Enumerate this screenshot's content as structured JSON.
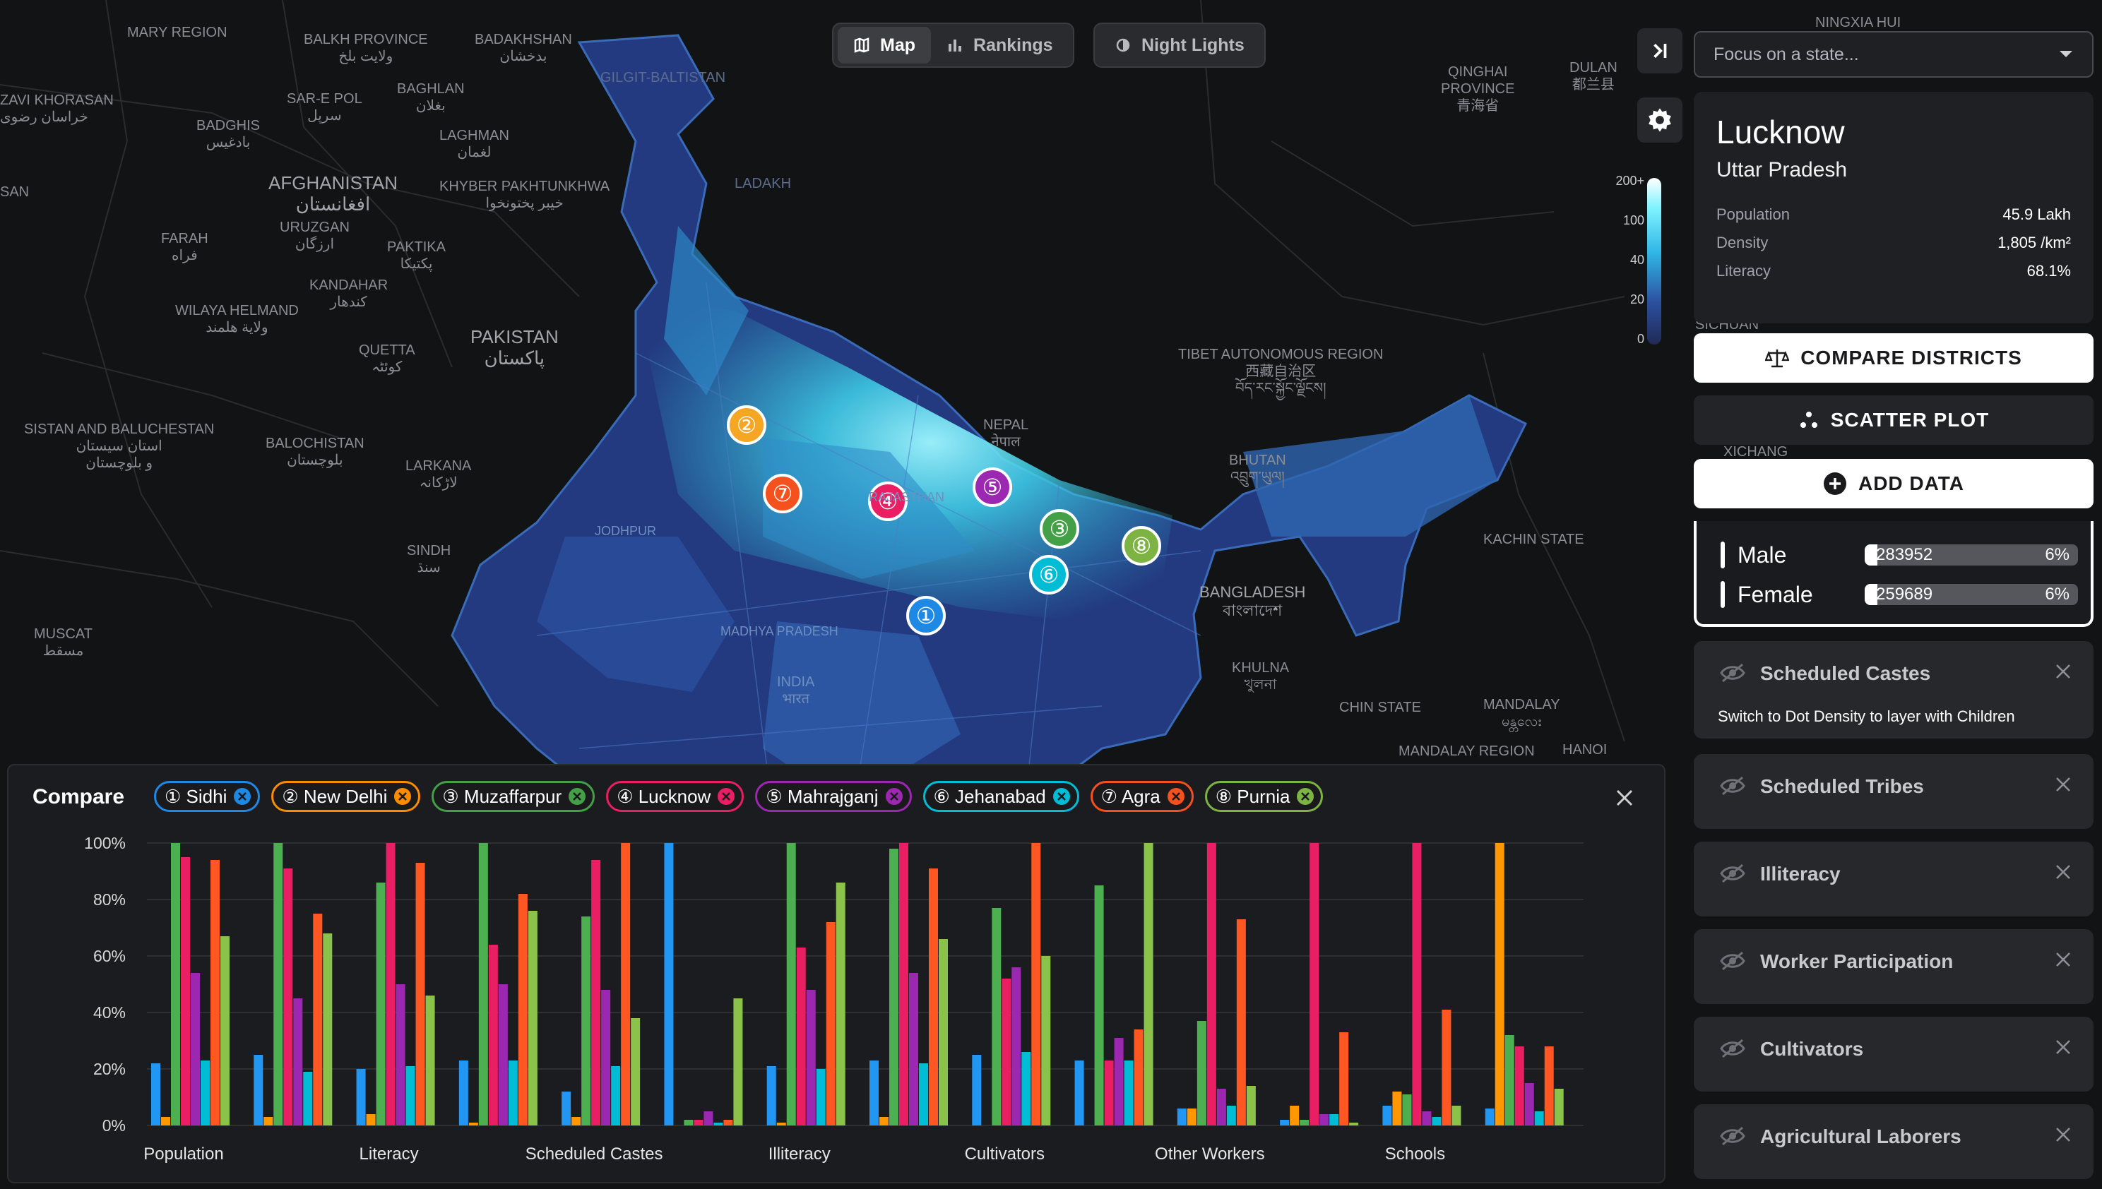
{
  "toolbar": {
    "tabs": [
      {
        "label": "Map",
        "icon": "map-icon",
        "active": true
      },
      {
        "label": "Rankings",
        "icon": "bar-chart-icon",
        "active": false
      }
    ],
    "night_lights_label": "Night Lights"
  },
  "map": {
    "labels": {
      "mary_region": "MARY REGION",
      "balkh": "BALKH PROVINCE\nولایت بلخ",
      "badakhshan": "BADAKHSHAN\nبدخشان",
      "zavi": "ZAVI KHORASAN\nخراسان رضوی",
      "sarepol": "SAR-E POL\nسرپل",
      "baghlan": "BAGHLAN\nبغلان",
      "badghis": "BADGHIS\nبادغیس",
      "laghman": "LAGHMAN\nلغمان",
      "san": "SAN",
      "afghanistan": "AFGHANISTAN\nافغانستان",
      "kpk": "KHYBER PAKHTUNKHWA\nخیبر پختونخوا",
      "uruzgan": "URUZGAN\nارزگان",
      "farah": "FARAH\nفراه",
      "paktika": "PAKTIKA\nپکتیکا",
      "kandahar": "KANDAHAR\nکندهار",
      "helmand": "WILAYA HELMAND\nولاية هلمند",
      "pakistan": "PAKISTAN\nپاکستان",
      "quetta": "QUETTA\nکوئٹہ",
      "sistan": "SISTAN AND BALUCHESTAN\nاستان سیستان\nو بلوچستان",
      "balochistan": "BALOCHISTAN\nبلوچستان",
      "larkana": "LARKANA\nلاڑکانہ",
      "sindh": "SINDH\nسنڌ",
      "muscat": "MUSCAT\nمسقط",
      "gilgit": "GILGIT-BALTISTAN",
      "ladakh": "LADAKH",
      "nepal": "NEPAL\nनेपाल",
      "bhutan": "BHUTAN\nའབྲུག་ཡུལ།",
      "bangladesh": "BANGLADESH\nবাংলাদেশ",
      "khulna": "KHULNA\nখুলনা",
      "tibet": "TIBET AUTONOMOUS REGION\n西藏自治区\nབོད་རང་སྐྱོང་ལྗོངས།",
      "qinghai": "QINGHAI\nPROVINCE\n青海省",
      "dulan": "DULAN\n都兰县",
      "ningxia": "NINGXIA HUI",
      "kachin": "KACHIN STATE",
      "mandalay": "MANDALAY\nမန္တလေး",
      "mandalay_region": "MANDALAY REGION",
      "chin": "CHIN STATE",
      "india": "INDIA\nभारत",
      "madhya": "MADHYA PRADESH",
      "rajasthan": "RAJASTHAN",
      "jodhpur": "JODHPUR",
      "madhya_pradesh": "MADHYA PRADESH",
      "hanoi": "HANOI",
      "sichuan": "SICHUAN",
      "xichang": "XICHANG"
    },
    "markers": [
      {
        "num": "2",
        "color": "#f5a623"
      },
      {
        "num": "7",
        "color": "#f4511e"
      },
      {
        "num": "4",
        "color": "#e91e63"
      },
      {
        "num": "5",
        "color": "#9c27b0"
      },
      {
        "num": "3",
        "color": "#43a047"
      },
      {
        "num": "8",
        "color": "#7cb342"
      },
      {
        "num": "6",
        "color": "#00bcd4"
      },
      {
        "num": "1",
        "color": "#1e88e5"
      }
    ],
    "marker_glyphs": {
      "1": "①",
      "2": "②",
      "3": "③",
      "4": "④",
      "5": "⑤",
      "6": "⑥",
      "7": "⑦",
      "8": "⑧"
    }
  },
  "legend": {
    "ticks": [
      "200+",
      "100",
      "40",
      "20",
      "0"
    ]
  },
  "sidebar": {
    "state_select_placeholder": "Focus on a state...",
    "details": {
      "city": "Lucknow",
      "state": "Uttar Pradesh",
      "stats": [
        {
          "label": "Population",
          "value": "45.9 Lakh"
        },
        {
          "label": "Density",
          "value": "1,805 /km²"
        },
        {
          "label": "Literacy",
          "value": "68.1%"
        }
      ]
    },
    "compare_districts_label": "COMPARE DISTRICTS",
    "scatter_plot_label": "SCATTER PLOT",
    "add_data_label": "ADD DATA",
    "gender": [
      {
        "label": "Male",
        "value": "283952",
        "pct": "6%"
      },
      {
        "label": "Female",
        "value": "259689",
        "pct": "6%"
      }
    ],
    "layers": [
      {
        "title": "Scheduled Castes",
        "subtitle": "Switch to Dot Density to layer with Children"
      },
      {
        "title": "Scheduled Tribes"
      },
      {
        "title": "Illiteracy"
      },
      {
        "title": "Worker Participation"
      },
      {
        "title": "Cultivators"
      },
      {
        "title": "Agricultural Laborers"
      }
    ]
  },
  "compare": {
    "title": "Compare",
    "chips": [
      {
        "glyph": "①",
        "label": "Sidhi",
        "color": "#1e88e5"
      },
      {
        "glyph": "②",
        "label": "New Delhi",
        "color": "#fb8c00"
      },
      {
        "glyph": "③",
        "label": "Muzaffarpur",
        "color": "#43a047"
      },
      {
        "glyph": "④",
        "label": "Lucknow",
        "color": "#e91e63"
      },
      {
        "glyph": "⑤",
        "label": "Mahrajganj",
        "color": "#9c27b0"
      },
      {
        "glyph": "⑥",
        "label": "Jehanabad",
        "color": "#00bcd4"
      },
      {
        "glyph": "⑦",
        "label": "Agra",
        "color": "#f4511e"
      },
      {
        "glyph": "⑧",
        "label": "Purnia",
        "color": "#7cb342"
      }
    ]
  },
  "chart_data": {
    "type": "bar",
    "ylim": [
      0,
      100
    ],
    "yticks": [
      "0%",
      "20%",
      "40%",
      "60%",
      "80%",
      "100%"
    ],
    "grid": true,
    "categories": [
      "Population",
      "",
      "Literacy",
      "",
      "Scheduled Castes",
      "",
      "Illiteracy",
      "",
      "Cultivators",
      "",
      "Other Workers",
      "",
      "Schools",
      ""
    ],
    "series": [
      {
        "name": "Sidhi",
        "color": "#2196f3",
        "values": [
          22,
          25,
          20,
          23,
          12,
          100,
          21,
          23,
          25,
          23,
          6,
          2,
          7,
          6
        ]
      },
      {
        "name": "New Delhi",
        "color": "#ff9800",
        "values": [
          3,
          3,
          4,
          1,
          3,
          0,
          1,
          3,
          0,
          0,
          6,
          7,
          12,
          100
        ]
      },
      {
        "name": "Muzaffarpur",
        "color": "#4caf50",
        "values": [
          100,
          100,
          86,
          100,
          74,
          2,
          100,
          98,
          77,
          85,
          37,
          2,
          11,
          32
        ]
      },
      {
        "name": "Lucknow",
        "color": "#e91e63",
        "values": [
          95,
          91,
          100,
          64,
          94,
          2,
          63,
          100,
          52,
          23,
          100,
          100,
          100,
          28
        ]
      },
      {
        "name": "Mahrajganj",
        "color": "#9c27b0",
        "values": [
          54,
          45,
          50,
          50,
          48,
          5,
          48,
          54,
          56,
          31,
          13,
          4,
          5,
          15
        ]
      },
      {
        "name": "Jehanabad",
        "color": "#00bcd4",
        "values": [
          23,
          19,
          21,
          23,
          21,
          1,
          20,
          22,
          26,
          23,
          7,
          4,
          3,
          5
        ]
      },
      {
        "name": "Agra",
        "color": "#ff5722",
        "values": [
          94,
          75,
          93,
          82,
          100,
          2,
          72,
          91,
          100,
          34,
          73,
          33,
          41,
          28
        ]
      },
      {
        "name": "Purnia",
        "color": "#8bc34a",
        "values": [
          67,
          68,
          46,
          76,
          38,
          45,
          86,
          66,
          60,
          100,
          14,
          1,
          7,
          13
        ]
      }
    ]
  }
}
